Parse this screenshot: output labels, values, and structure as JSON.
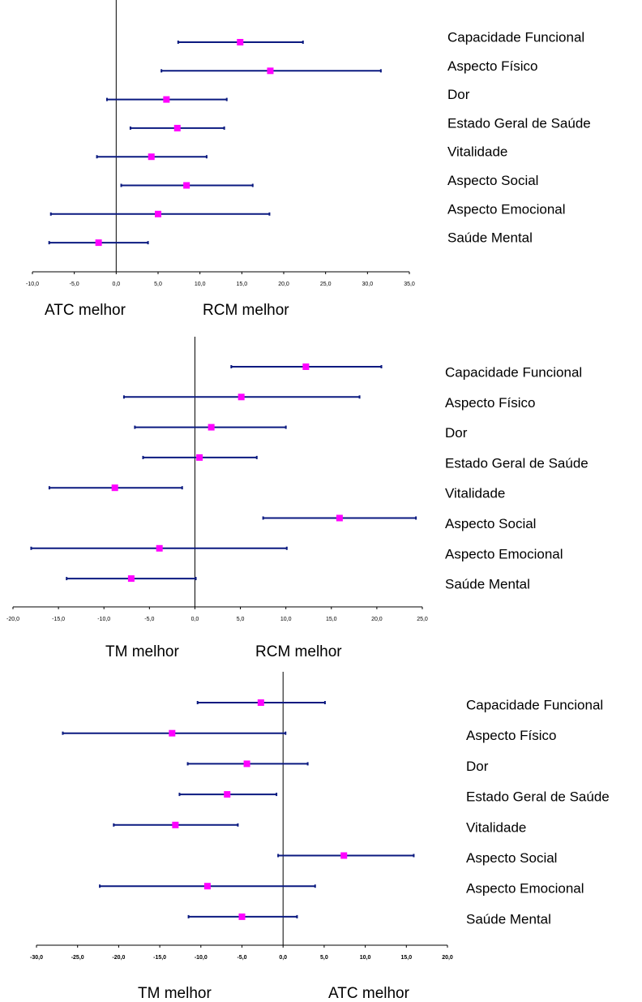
{
  "chart_data": [
    {
      "type": "forest",
      "color": "#0b1a80",
      "marker_color": "#ff00ff",
      "categories": [
        "Capacidade Funcional",
        "Aspecto Físico",
        "Dor",
        "Estado Geral de Saúde",
        "Vitalidade",
        "Aspecto Social",
        "Aspecto Emocional",
        "Saúde Mental"
      ],
      "values": [
        14.8,
        18.4,
        6.0,
        7.3,
        4.2,
        8.4,
        5.0,
        -2.1
      ],
      "lower": [
        7.4,
        5.4,
        -1.1,
        1.7,
        -2.3,
        0.6,
        -7.8,
        -8.0
      ],
      "upper": [
        22.3,
        31.6,
        13.2,
        12.9,
        10.8,
        16.3,
        18.3,
        3.8
      ],
      "xlim": [
        -10,
        35
      ],
      "xticks": [
        {
          "value": -10,
          "label": "-10,0"
        },
        {
          "value": -5,
          "label": "-5,0"
        },
        {
          "value": 0,
          "label": "0,0"
        },
        {
          "value": 5,
          "label": "5,0"
        },
        {
          "value": 10,
          "label": "10,0"
        },
        {
          "value": 15,
          "label": "15,0"
        },
        {
          "value": 20,
          "label": "20,0"
        },
        {
          "value": 25,
          "label": "25,0"
        },
        {
          "value": 30,
          "label": "30,0"
        },
        {
          "value": 35,
          "label": "35,0"
        }
      ],
      "annotations": [
        "ATC melhor",
        "RCM melhor"
      ]
    },
    {
      "type": "forest",
      "color": "#0b1a80",
      "marker_color": "#ff00ff",
      "categories": [
        "Capacidade Funcional",
        "Aspecto Físico",
        "Dor",
        "Estado Geral de Saúde",
        "Vitalidade",
        "Aspecto Social",
        "Aspecto Emocional",
        "Saúde Mental"
      ],
      "values": [
        12.2,
        5.1,
        1.8,
        0.5,
        -8.8,
        15.9,
        -3.9,
        -7.0
      ],
      "lower": [
        4.0,
        -7.8,
        -6.6,
        -5.7,
        -16.0,
        7.5,
        -18.0,
        -14.1
      ],
      "upper": [
        20.5,
        18.1,
        10.0,
        6.8,
        -1.4,
        24.3,
        10.1,
        0.1
      ],
      "xlim": [
        -20,
        25
      ],
      "xticks": [
        {
          "value": -20,
          "label": "-20,0"
        },
        {
          "value": -15,
          "label": "-15,0"
        },
        {
          "value": -10,
          "label": "-10,0"
        },
        {
          "value": -5,
          "label": "-5,0"
        },
        {
          "value": 0,
          "label": "0,0"
        },
        {
          "value": 5,
          "label": "5,0"
        },
        {
          "value": 10,
          "label": "10,0"
        },
        {
          "value": 15,
          "label": "15,0"
        },
        {
          "value": 20,
          "label": "20,0"
        },
        {
          "value": 25,
          "label": "25,0"
        }
      ],
      "annotations": [
        "TM melhor",
        "RCM melhor"
      ]
    },
    {
      "type": "forest",
      "color": "#0b1a80",
      "marker_color": "#ff00ff",
      "categories": [
        "Capacidade Funcional",
        "Aspecto Físico",
        "Dor",
        "Estado Geral de Saúde",
        "Vitalidade",
        "Aspecto Social",
        "Aspecto Emocional",
        "Saúde Mental"
      ],
      "values": [
        -2.7,
        -13.5,
        -4.4,
        -6.8,
        -13.1,
        7.4,
        -9.2,
        -5.0
      ],
      "lower": [
        -10.4,
        -26.8,
        -11.6,
        -12.6,
        -20.6,
        -0.6,
        -22.3,
        -11.5
      ],
      "upper": [
        5.1,
        0.3,
        3.0,
        -0.8,
        -5.5,
        15.9,
        3.9,
        1.7
      ],
      "xlim": [
        -30,
        20
      ],
      "xticks": [
        {
          "value": -30,
          "label": "-30,0"
        },
        {
          "value": -25,
          "label": "-25,0"
        },
        {
          "value": -20,
          "label": "-20,0"
        },
        {
          "value": -15,
          "label": "-15,0"
        },
        {
          "value": -10,
          "label": "-10,0"
        },
        {
          "value": -5,
          "label": "-5,0"
        },
        {
          "value": 0,
          "label": "0,0"
        },
        {
          "value": 5,
          "label": "5,0"
        },
        {
          "value": 10,
          "label": "10,0"
        },
        {
          "value": 15,
          "label": "15,0"
        },
        {
          "value": 20,
          "label": "20,0"
        }
      ],
      "annotations": [
        "TM melhor",
        "ATC melhor"
      ]
    }
  ]
}
